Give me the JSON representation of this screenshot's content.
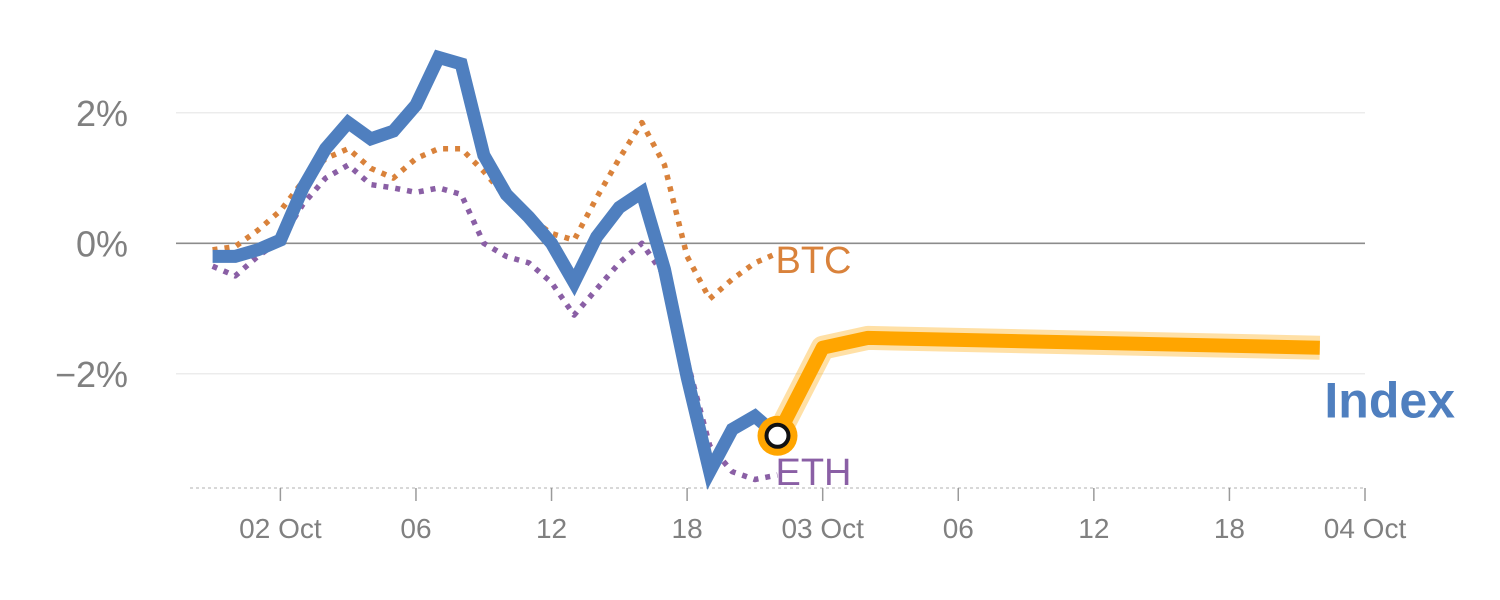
{
  "chart_data": {
    "type": "line",
    "title": "",
    "xlabel": "",
    "ylabel": "",
    "y_unit": "%",
    "ylim": [
      -3.75,
      3.3
    ],
    "y_ticks": [
      {
        "value": 2,
        "label": "2%"
      },
      {
        "value": 0,
        "label": "0%"
      },
      {
        "value": -2,
        "label": "−2%"
      }
    ],
    "x_range": [
      "01 Oct 20:00",
      "04 Oct 00:00"
    ],
    "x_ticks": [
      {
        "time": "02 Oct 00:00",
        "label": "02 Oct"
      },
      {
        "time": "02 Oct 06:00",
        "label": "06"
      },
      {
        "time": "02 Oct 12:00",
        "label": "12"
      },
      {
        "time": "02 Oct 18:00",
        "label": "18"
      },
      {
        "time": "03 Oct 00:00",
        "label": "03 Oct"
      },
      {
        "time": "03 Oct 06:00",
        "label": "06"
      },
      {
        "time": "03 Oct 12:00",
        "label": "12"
      },
      {
        "time": "03 Oct 18:00",
        "label": "18"
      },
      {
        "time": "04 Oct 00:00",
        "label": "04 Oct"
      }
    ],
    "grid": true,
    "colors": {
      "index": "#4f7fbf",
      "forecast": "#ffa500",
      "btc": "#d9823b",
      "eth": "#8a5fa5",
      "zero_line": "#8c8c8c",
      "grid": "#e6e6e6",
      "tick_text": "#808080"
    },
    "series": [
      {
        "name": "Index",
        "style": "solid",
        "points": [
          [
            "01 Oct 21:00",
            -0.2
          ],
          [
            "01 Oct 22:00",
            -0.2
          ],
          [
            "01 Oct 23:00",
            -0.1
          ],
          [
            "02 Oct 00:00",
            0.05
          ],
          [
            "02 Oct 01:00",
            0.85
          ],
          [
            "02 Oct 02:00",
            1.45
          ],
          [
            "02 Oct 03:00",
            1.85
          ],
          [
            "02 Oct 04:00",
            1.6
          ],
          [
            "02 Oct 05:00",
            1.72
          ],
          [
            "02 Oct 06:00",
            2.12
          ],
          [
            "02 Oct 07:00",
            2.85
          ],
          [
            "02 Oct 08:00",
            2.75
          ],
          [
            "02 Oct 09:00",
            1.35
          ],
          [
            "02 Oct 10:00",
            0.75
          ],
          [
            "02 Oct 11:00",
            0.4
          ],
          [
            "02 Oct 12:00",
            0.0
          ],
          [
            "02 Oct 13:00",
            -0.6
          ],
          [
            "02 Oct 14:00",
            0.1
          ],
          [
            "02 Oct 15:00",
            0.55
          ],
          [
            "02 Oct 16:00",
            0.78
          ],
          [
            "02 Oct 17:00",
            -0.4
          ],
          [
            "02 Oct 18:00",
            -2.05
          ],
          [
            "02 Oct 19:00",
            -3.5
          ],
          [
            "02 Oct 20:00",
            -2.85
          ],
          [
            "02 Oct 21:00",
            -2.65
          ],
          [
            "02 Oct 22:00",
            -2.95
          ]
        ]
      },
      {
        "name": "Index forecast",
        "style": "highlight",
        "points": [
          [
            "02 Oct 22:00",
            -2.95
          ],
          [
            "03 Oct 00:00",
            -1.6
          ],
          [
            "03 Oct 02:00",
            -1.45
          ],
          [
            "03 Oct 22:00",
            -1.6
          ]
        ]
      },
      {
        "name": "BTC",
        "style": "dotted",
        "points": [
          [
            "01 Oct 21:00",
            -0.1
          ],
          [
            "01 Oct 22:00",
            -0.05
          ],
          [
            "01 Oct 23:00",
            0.2
          ],
          [
            "02 Oct 00:00",
            0.5
          ],
          [
            "02 Oct 01:00",
            0.95
          ],
          [
            "02 Oct 02:00",
            1.3
          ],
          [
            "02 Oct 03:00",
            1.45
          ],
          [
            "02 Oct 04:00",
            1.15
          ],
          [
            "02 Oct 05:00",
            1.0
          ],
          [
            "02 Oct 06:00",
            1.3
          ],
          [
            "02 Oct 07:00",
            1.45
          ],
          [
            "02 Oct 08:00",
            1.45
          ],
          [
            "02 Oct 09:00",
            1.1
          ],
          [
            "02 Oct 10:00",
            0.7
          ],
          [
            "02 Oct 11:00",
            0.4
          ],
          [
            "02 Oct 12:00",
            0.15
          ],
          [
            "02 Oct 13:00",
            0.05
          ],
          [
            "02 Oct 14:00",
            0.7
          ],
          [
            "02 Oct 15:00",
            1.3
          ],
          [
            "02 Oct 16:00",
            1.85
          ],
          [
            "02 Oct 17:00",
            1.2
          ],
          [
            "02 Oct 18:00",
            -0.2
          ],
          [
            "02 Oct 19:00",
            -0.85
          ],
          [
            "02 Oct 20:00",
            -0.55
          ],
          [
            "02 Oct 21:00",
            -0.3
          ],
          [
            "02 Oct 22:00",
            -0.15
          ]
        ]
      },
      {
        "name": "ETH",
        "style": "dotted",
        "points": [
          [
            "01 Oct 21:00",
            -0.35
          ],
          [
            "01 Oct 22:00",
            -0.5
          ],
          [
            "01 Oct 23:00",
            -0.2
          ],
          [
            "02 Oct 00:00",
            0.05
          ],
          [
            "02 Oct 01:00",
            0.6
          ],
          [
            "02 Oct 02:00",
            1.0
          ],
          [
            "02 Oct 03:00",
            1.2
          ],
          [
            "02 Oct 04:00",
            0.9
          ],
          [
            "02 Oct 05:00",
            0.85
          ],
          [
            "02 Oct 06:00",
            0.78
          ],
          [
            "02 Oct 07:00",
            0.85
          ],
          [
            "02 Oct 08:00",
            0.75
          ],
          [
            "02 Oct 09:00",
            0.0
          ],
          [
            "02 Oct 10:00",
            -0.2
          ],
          [
            "02 Oct 11:00",
            -0.3
          ],
          [
            "02 Oct 12:00",
            -0.6
          ],
          [
            "02 Oct 13:00",
            -1.1
          ],
          [
            "02 Oct 14:00",
            -0.7
          ],
          [
            "02 Oct 15:00",
            -0.3
          ],
          [
            "02 Oct 16:00",
            0.0
          ],
          [
            "02 Oct 17:00",
            -0.5
          ],
          [
            "02 Oct 18:00",
            -1.8
          ],
          [
            "02 Oct 19:00",
            -3.1
          ],
          [
            "02 Oct 20:00",
            -3.5
          ],
          [
            "02 Oct 21:00",
            -3.62
          ],
          [
            "02 Oct 22:00",
            -3.55
          ]
        ]
      }
    ],
    "marker": {
      "time": "02 Oct 22:00",
      "value": -2.95
    },
    "labels": {
      "btc": "BTC",
      "eth": "ETH",
      "index": "Index"
    }
  }
}
